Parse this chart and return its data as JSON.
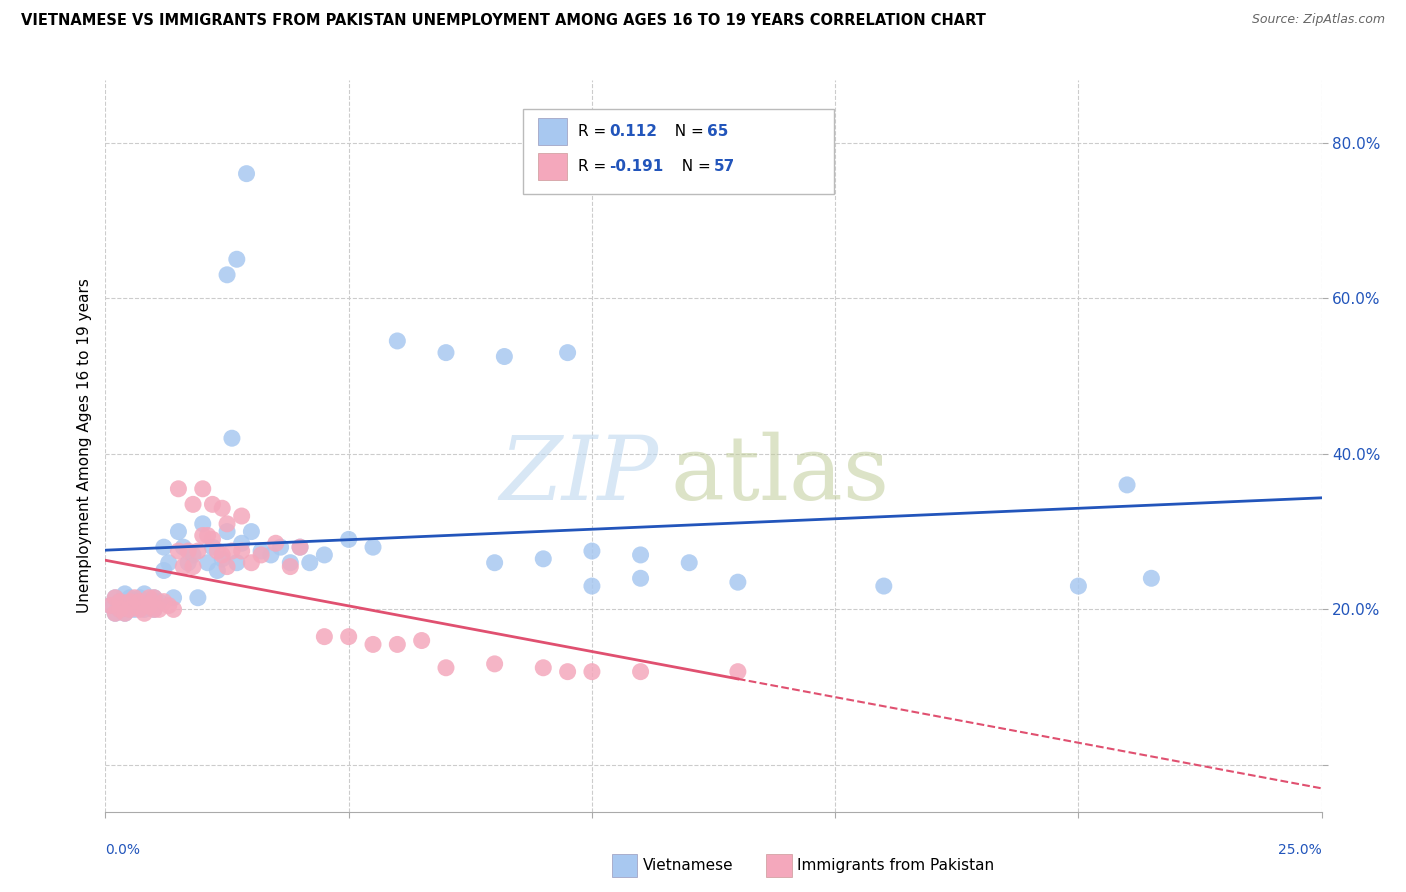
{
  "title": "VIETNAMESE VS IMMIGRANTS FROM PAKISTAN UNEMPLOYMENT AMONG AGES 16 TO 19 YEARS CORRELATION CHART",
  "source": "Source: ZipAtlas.com",
  "ylabel": "Unemployment Among Ages 16 to 19 years",
  "xmin": 0.0,
  "xmax": 0.25,
  "ymin": -0.06,
  "ymax": 0.88,
  "ytick_vals": [
    0.0,
    0.2,
    0.4,
    0.6,
    0.8
  ],
  "ytick_labels": [
    "",
    "20.0%",
    "40.0%",
    "60.0%",
    "80.0%"
  ],
  "xtick_vals": [
    0.0,
    0.05,
    0.1,
    0.15,
    0.2,
    0.25
  ],
  "blue_scatter_color": "#A8C8F0",
  "pink_scatter_color": "#F4A8BC",
  "blue_line_color": "#2255BB",
  "pink_line_color": "#E05070",
  "grid_color": "#cccccc",
  "tick_color": "#2255BB",
  "legend_label_blue": "Vietnamese",
  "legend_label_pink": "Immigrants from Pakistan",
  "R_blue_str": "0.112",
  "N_blue_str": "65",
  "R_pink_str": "-0.191",
  "N_pink_str": "57",
  "blue_x": [
    0.001,
    0.002,
    0.002,
    0.003,
    0.003,
    0.004,
    0.004,
    0.005,
    0.005,
    0.006,
    0.006,
    0.007,
    0.008,
    0.008,
    0.009,
    0.01,
    0.01,
    0.011,
    0.012,
    0.012,
    0.013,
    0.014,
    0.015,
    0.016,
    0.017,
    0.018,
    0.019,
    0.02,
    0.021,
    0.022,
    0.023,
    0.024,
    0.025,
    0.026,
    0.027,
    0.028,
    0.03,
    0.032,
    0.034,
    0.036,
    0.038,
    0.04,
    0.042,
    0.045,
    0.05,
    0.055,
    0.06,
    0.07,
    0.08,
    0.09,
    0.1,
    0.11,
    0.12,
    0.13,
    0.1,
    0.11,
    0.16,
    0.2,
    0.21,
    0.215,
    0.025,
    0.027,
    0.029,
    0.082,
    0.095
  ],
  "blue_y": [
    0.205,
    0.195,
    0.215,
    0.2,
    0.21,
    0.195,
    0.22,
    0.2,
    0.215,
    0.2,
    0.21,
    0.215,
    0.22,
    0.2,
    0.205,
    0.215,
    0.2,
    0.21,
    0.28,
    0.25,
    0.26,
    0.215,
    0.3,
    0.28,
    0.26,
    0.27,
    0.215,
    0.31,
    0.26,
    0.28,
    0.25,
    0.265,
    0.3,
    0.42,
    0.26,
    0.285,
    0.3,
    0.275,
    0.27,
    0.28,
    0.26,
    0.28,
    0.26,
    0.27,
    0.29,
    0.28,
    0.545,
    0.53,
    0.26,
    0.265,
    0.275,
    0.27,
    0.26,
    0.235,
    0.23,
    0.24,
    0.23,
    0.23,
    0.36,
    0.24,
    0.63,
    0.65,
    0.76,
    0.525,
    0.53
  ],
  "pink_x": [
    0.001,
    0.002,
    0.002,
    0.003,
    0.003,
    0.004,
    0.005,
    0.005,
    0.006,
    0.007,
    0.007,
    0.008,
    0.009,
    0.009,
    0.01,
    0.01,
    0.011,
    0.012,
    0.013,
    0.014,
    0.015,
    0.016,
    0.017,
    0.018,
    0.019,
    0.02,
    0.021,
    0.022,
    0.023,
    0.024,
    0.025,
    0.026,
    0.028,
    0.03,
    0.032,
    0.035,
    0.038,
    0.04,
    0.045,
    0.05,
    0.055,
    0.06,
    0.065,
    0.07,
    0.08,
    0.09,
    0.095,
    0.1,
    0.11,
    0.13,
    0.015,
    0.018,
    0.02,
    0.022,
    0.024,
    0.025,
    0.028
  ],
  "pink_y": [
    0.205,
    0.195,
    0.215,
    0.2,
    0.21,
    0.195,
    0.21,
    0.2,
    0.215,
    0.2,
    0.21,
    0.195,
    0.205,
    0.215,
    0.2,
    0.215,
    0.2,
    0.21,
    0.205,
    0.2,
    0.275,
    0.255,
    0.275,
    0.255,
    0.275,
    0.295,
    0.295,
    0.29,
    0.275,
    0.27,
    0.255,
    0.275,
    0.275,
    0.26,
    0.27,
    0.285,
    0.255,
    0.28,
    0.165,
    0.165,
    0.155,
    0.155,
    0.16,
    0.125,
    0.13,
    0.125,
    0.12,
    0.12,
    0.12,
    0.12,
    0.355,
    0.335,
    0.355,
    0.335,
    0.33,
    0.31,
    0.32
  ]
}
